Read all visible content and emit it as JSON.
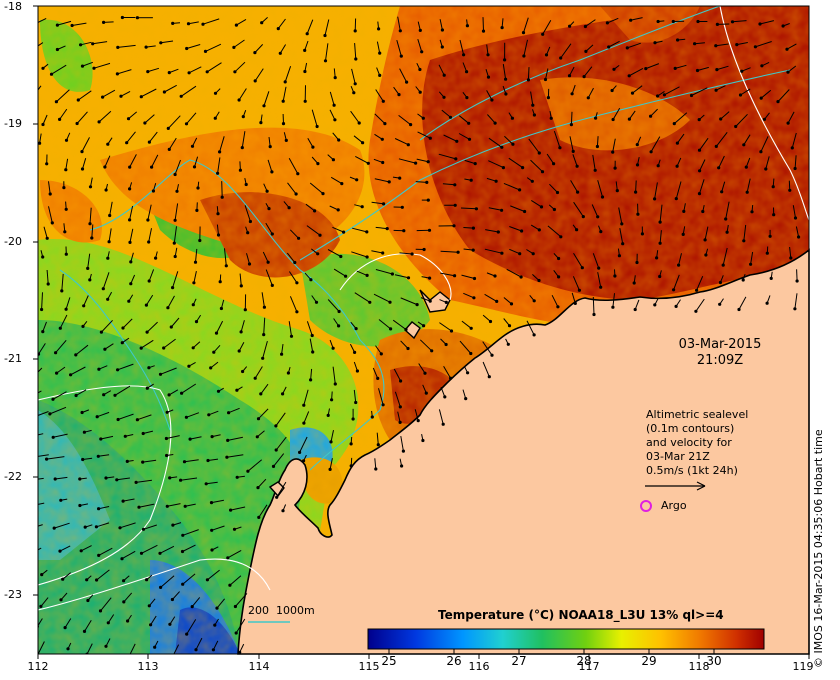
{
  "map": {
    "lat_ticks": [
      "-18",
      "-19",
      "-20",
      "-21",
      "-22",
      "-23"
    ],
    "lon_ticks": [
      "112",
      "113",
      "114",
      "115",
      "116",
      "117",
      "118",
      "119"
    ],
    "lon_range": [
      112,
      119
    ],
    "lat_range": [
      -23.5,
      -18
    ]
  },
  "timestamp": {
    "date": "03-Mar-2015",
    "time": "21:09Z"
  },
  "sealevel_note": {
    "line1": "Altimetric sealevel",
    "line2": "(0.1m contours)",
    "line3": "and velocity for",
    "line4": "03-Mar 21Z",
    "line5": "0.5m/s (1kt 24h)"
  },
  "argo_label": "Argo",
  "depth_contour_label": "200  1000m",
  "colorbar": {
    "title": "Temperature (°C) NOAA18_L3U 13% ql>=4",
    "ticks": [
      "25",
      "26",
      "27",
      "28",
      "29",
      "30"
    ],
    "range": [
      24.6,
      30.7
    ]
  },
  "credit": "© IMOS 16-Mar-2015 04:35:06 Hobart time",
  "colors": {
    "land": "#fcc8a0",
    "coastline": "#000000",
    "bathymetry": "#40c8c8",
    "sealevel_contour": "#ffffff",
    "argo_marker": "#e020e0"
  }
}
